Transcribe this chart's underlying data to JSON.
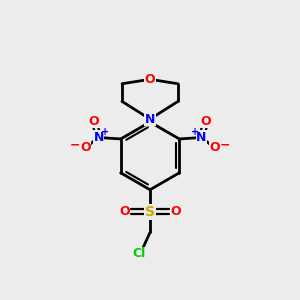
{
  "background_color": "#ececec",
  "bond_color": "#000000",
  "atom_colors": {
    "O": "#ff0000",
    "N": "#0000ff",
    "S": "#ccaa00",
    "Cl": "#00cc00",
    "C": "#000000"
  },
  "figsize": [
    3.0,
    3.0
  ],
  "dpi": 100
}
